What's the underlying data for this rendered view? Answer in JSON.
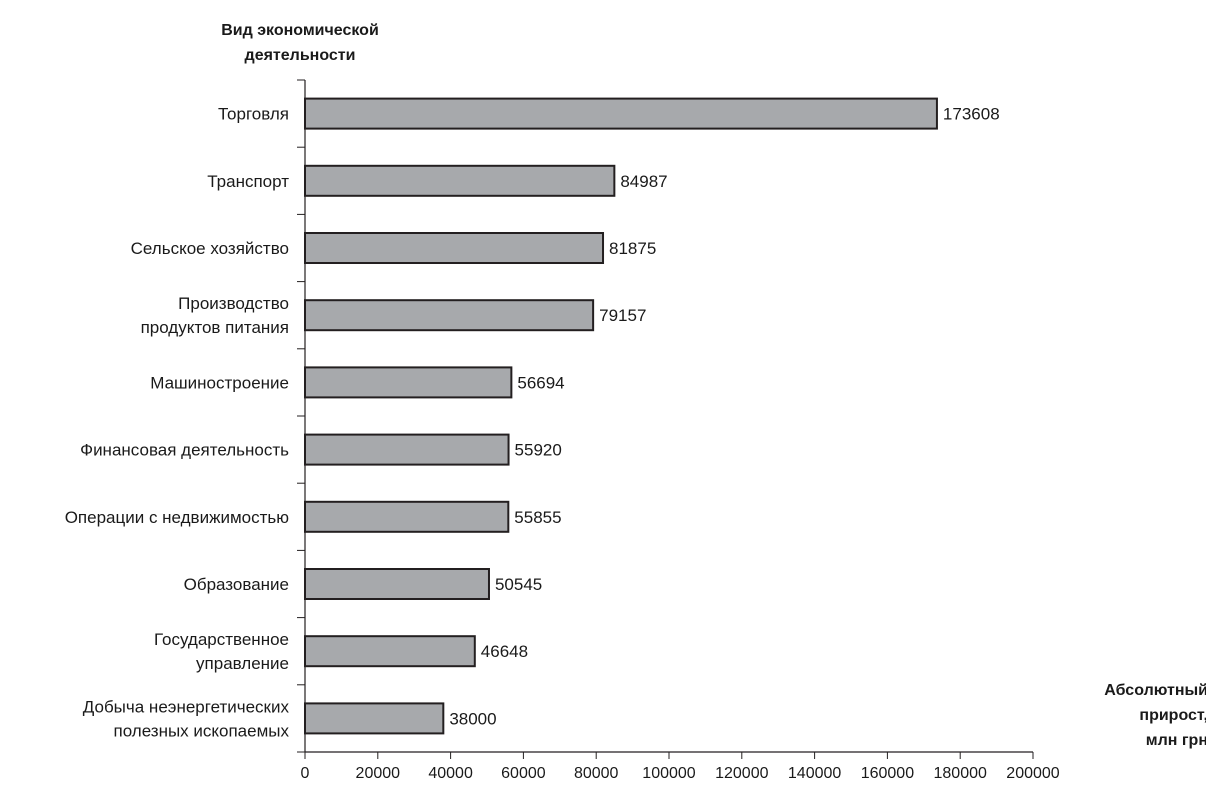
{
  "chart_data": {
    "type": "bar",
    "orientation": "horizontal",
    "ylabel": [
      "Вид экономической",
      "деятельности"
    ],
    "xlabel": [
      "Абсолютный",
      "прирост,",
      "млн грн"
    ],
    "categories": [
      [
        "Торговля"
      ],
      [
        "Транспорт"
      ],
      [
        "Сельское хозяйство"
      ],
      [
        "Производство",
        "продуктов питания"
      ],
      [
        "Машиностроение"
      ],
      [
        "Финансовая деятельность"
      ],
      [
        "Операции с недвижимостью"
      ],
      [
        "Образование"
      ],
      [
        "Государственное",
        "управление"
      ],
      [
        "Добыча неэнергетических",
        "полезных ископаемых"
      ]
    ],
    "values": [
      173608,
      84987,
      81875,
      79157,
      56694,
      55920,
      55855,
      50545,
      46648,
      38000
    ],
    "data_labels": [
      "173608",
      "84987",
      "81875",
      "79157",
      "56694",
      "55920",
      "55855",
      "50545",
      "46648",
      "38000"
    ],
    "xticks": [
      0,
      20000,
      40000,
      60000,
      80000,
      100000,
      120000,
      140000,
      160000,
      180000,
      200000
    ],
    "xtick_labels": [
      "0",
      "20000",
      "40000",
      "60000",
      "80000",
      "100000",
      "120000",
      "140000",
      "160000",
      "180000",
      "200000"
    ],
    "xlim": [
      0,
      200000
    ],
    "grid": false,
    "legend": "none",
    "colors": {
      "bar_fill": "#a7a9ac",
      "bar_stroke": "#231f20",
      "axis": "#231f20"
    }
  }
}
